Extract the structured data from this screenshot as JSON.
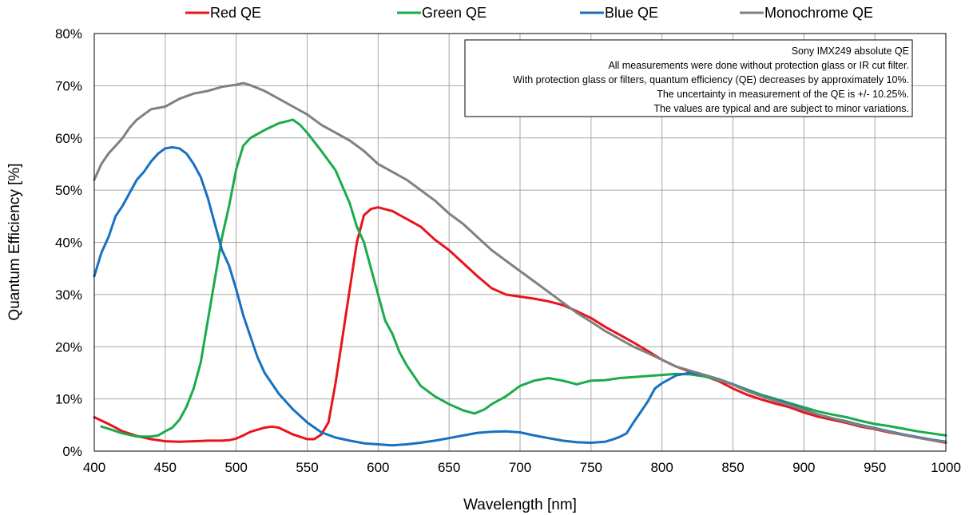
{
  "chart_data": {
    "type": "line",
    "xlabel": "Wavelength [nm]",
    "ylabel": "Quantum Efficiency [%]",
    "xlim": [
      400,
      1000
    ],
    "ylim": [
      0,
      80
    ],
    "x_ticks": [
      400,
      450,
      500,
      550,
      600,
      650,
      700,
      750,
      800,
      850,
      900,
      950,
      1000
    ],
    "y_ticks": [
      0,
      10,
      20,
      30,
      40,
      50,
      60,
      70,
      80
    ],
    "y_tick_labels": [
      "0%",
      "10%",
      "20%",
      "30%",
      "40%",
      "50%",
      "60%",
      "70%",
      "80%"
    ],
    "x_tick_labels": [
      "400",
      "450",
      "500",
      "550",
      "600",
      "650",
      "700",
      "750",
      "800",
      "850",
      "900",
      "950",
      "1000"
    ],
    "grid": true,
    "legend_position": "top",
    "annotation": {
      "lines": [
        "Sony IMX249 absolute QE",
        "All measurements were done without protection glass or IR cut filter.",
        "With protection glass or filters, quantum efficiency (QE) decreases by approximately 10%.",
        "The uncertainty in measurement of the QE is +/- 10.25%.",
        "The values are typical and are subject to minor variations."
      ]
    },
    "series": [
      {
        "name": "Red QE",
        "color": "#e8141c",
        "points": [
          [
            400,
            6.5
          ],
          [
            410,
            5.2
          ],
          [
            420,
            3.8
          ],
          [
            430,
            2.9
          ],
          [
            440,
            2.3
          ],
          [
            450,
            1.9
          ],
          [
            460,
            1.8
          ],
          [
            470,
            1.9
          ],
          [
            480,
            2.0
          ],
          [
            490,
            2.0
          ],
          [
            495,
            2.1
          ],
          [
            500,
            2.4
          ],
          [
            505,
            3.0
          ],
          [
            510,
            3.7
          ],
          [
            520,
            4.5
          ],
          [
            525,
            4.7
          ],
          [
            530,
            4.5
          ],
          [
            540,
            3.2
          ],
          [
            550,
            2.3
          ],
          [
            555,
            2.3
          ],
          [
            560,
            3.2
          ],
          [
            565,
            5.5
          ],
          [
            570,
            13.0
          ],
          [
            575,
            22.0
          ],
          [
            580,
            31.0
          ],
          [
            585,
            40.0
          ],
          [
            590,
            45.2
          ],
          [
            595,
            46.4
          ],
          [
            600,
            46.7
          ],
          [
            610,
            46.0
          ],
          [
            620,
            44.5
          ],
          [
            630,
            43.0
          ],
          [
            640,
            40.5
          ],
          [
            650,
            38.5
          ],
          [
            660,
            36.0
          ],
          [
            670,
            33.5
          ],
          [
            680,
            31.2
          ],
          [
            690,
            30.0
          ],
          [
            700,
            29.6
          ],
          [
            710,
            29.2
          ],
          [
            720,
            28.7
          ],
          [
            730,
            28.0
          ],
          [
            740,
            26.8
          ],
          [
            750,
            25.5
          ],
          [
            760,
            23.8
          ],
          [
            770,
            22.3
          ],
          [
            780,
            20.8
          ],
          [
            790,
            19.2
          ],
          [
            800,
            17.5
          ],
          [
            810,
            16.2
          ],
          [
            820,
            15.2
          ],
          [
            830,
            14.4
          ],
          [
            840,
            13.4
          ],
          [
            850,
            12.0
          ],
          [
            860,
            10.8
          ],
          [
            870,
            9.9
          ],
          [
            880,
            9.1
          ],
          [
            890,
            8.4
          ],
          [
            900,
            7.4
          ],
          [
            910,
            6.6
          ],
          [
            920,
            6.0
          ],
          [
            930,
            5.4
          ],
          [
            940,
            4.7
          ],
          [
            950,
            4.2
          ],
          [
            960,
            3.6
          ],
          [
            970,
            3.1
          ],
          [
            980,
            2.6
          ],
          [
            990,
            2.1
          ],
          [
            1000,
            1.6
          ]
        ]
      },
      {
        "name": "Green QE",
        "color": "#1aab4b",
        "points": [
          [
            405,
            4.7
          ],
          [
            410,
            4.3
          ],
          [
            420,
            3.4
          ],
          [
            430,
            2.8
          ],
          [
            440,
            2.8
          ],
          [
            445,
            3.0
          ],
          [
            450,
            3.8
          ],
          [
            455,
            4.5
          ],
          [
            460,
            6.0
          ],
          [
            465,
            8.5
          ],
          [
            470,
            12.0
          ],
          [
            475,
            17.0
          ],
          [
            480,
            25.0
          ],
          [
            485,
            33.0
          ],
          [
            490,
            41.0
          ],
          [
            495,
            47.0
          ],
          [
            500,
            54.0
          ],
          [
            505,
            58.5
          ],
          [
            510,
            60.0
          ],
          [
            520,
            61.5
          ],
          [
            530,
            62.8
          ],
          [
            540,
            63.5
          ],
          [
            545,
            62.5
          ],
          [
            550,
            61.0
          ],
          [
            560,
            57.5
          ],
          [
            570,
            53.8
          ],
          [
            580,
            47.5
          ],
          [
            585,
            43.0
          ],
          [
            590,
            40.0
          ],
          [
            595,
            35.0
          ],
          [
            600,
            30.0
          ],
          [
            605,
            25.0
          ],
          [
            610,
            22.5
          ],
          [
            615,
            19.0
          ],
          [
            620,
            16.5
          ],
          [
            630,
            12.5
          ],
          [
            640,
            10.5
          ],
          [
            650,
            9.0
          ],
          [
            660,
            7.8
          ],
          [
            668,
            7.2
          ],
          [
            675,
            8.0
          ],
          [
            680,
            9.0
          ],
          [
            690,
            10.5
          ],
          [
            700,
            12.5
          ],
          [
            710,
            13.5
          ],
          [
            720,
            14.0
          ],
          [
            730,
            13.5
          ],
          [
            740,
            12.8
          ],
          [
            750,
            13.5
          ],
          [
            760,
            13.6
          ],
          [
            770,
            14.0
          ],
          [
            780,
            14.2
          ],
          [
            790,
            14.4
          ],
          [
            800,
            14.6
          ],
          [
            810,
            14.8
          ],
          [
            820,
            14.7
          ],
          [
            830,
            14.3
          ],
          [
            840,
            13.6
          ],
          [
            850,
            12.8
          ],
          [
            860,
            11.8
          ],
          [
            870,
            10.8
          ],
          [
            880,
            10.0
          ],
          [
            890,
            9.2
          ],
          [
            900,
            8.4
          ],
          [
            910,
            7.6
          ],
          [
            920,
            7.0
          ],
          [
            930,
            6.5
          ],
          [
            940,
            5.8
          ],
          [
            950,
            5.2
          ],
          [
            960,
            4.8
          ],
          [
            970,
            4.3
          ],
          [
            980,
            3.8
          ],
          [
            990,
            3.4
          ],
          [
            1000,
            3.0
          ]
        ]
      },
      {
        "name": "Blue QE",
        "color": "#1870c0",
        "points": [
          [
            400,
            33.5
          ],
          [
            405,
            38.0
          ],
          [
            410,
            41.0
          ],
          [
            415,
            45.0
          ],
          [
            420,
            47.0
          ],
          [
            425,
            49.5
          ],
          [
            430,
            52.0
          ],
          [
            435,
            53.5
          ],
          [
            440,
            55.5
          ],
          [
            445,
            57.0
          ],
          [
            450,
            58.0
          ],
          [
            455,
            58.2
          ],
          [
            460,
            58.0
          ],
          [
            465,
            57.0
          ],
          [
            470,
            55.0
          ],
          [
            475,
            52.5
          ],
          [
            480,
            48.5
          ],
          [
            485,
            43.5
          ],
          [
            490,
            38.5
          ],
          [
            495,
            35.5
          ],
          [
            500,
            31.0
          ],
          [
            505,
            26.0
          ],
          [
            510,
            22.0
          ],
          [
            515,
            18.0
          ],
          [
            520,
            15.0
          ],
          [
            525,
            13.0
          ],
          [
            530,
            11.0
          ],
          [
            540,
            8.0
          ],
          [
            550,
            5.5
          ],
          [
            560,
            3.6
          ],
          [
            570,
            2.6
          ],
          [
            580,
            2.0
          ],
          [
            590,
            1.5
          ],
          [
            600,
            1.3
          ],
          [
            610,
            1.1
          ],
          [
            620,
            1.3
          ],
          [
            630,
            1.6
          ],
          [
            640,
            2.0
          ],
          [
            650,
            2.5
          ],
          [
            660,
            3.0
          ],
          [
            670,
            3.5
          ],
          [
            680,
            3.7
          ],
          [
            690,
            3.8
          ],
          [
            700,
            3.6
          ],
          [
            710,
            3.0
          ],
          [
            720,
            2.5
          ],
          [
            730,
            2.0
          ],
          [
            740,
            1.7
          ],
          [
            750,
            1.6
          ],
          [
            760,
            1.8
          ],
          [
            765,
            2.2
          ],
          [
            770,
            2.7
          ],
          [
            775,
            3.4
          ],
          [
            780,
            5.5
          ],
          [
            785,
            7.5
          ],
          [
            790,
            9.5
          ],
          [
            795,
            12.0
          ],
          [
            800,
            13.0
          ],
          [
            810,
            14.5
          ],
          [
            820,
            15.0
          ],
          [
            830,
            14.6
          ],
          [
            840,
            13.8
          ],
          [
            850,
            12.8
          ],
          [
            860,
            11.6
          ],
          [
            870,
            10.6
          ],
          [
            880,
            9.8
          ],
          [
            890,
            9.0
          ],
          [
            900,
            8.0
          ],
          [
            910,
            7.0
          ],
          [
            920,
            6.3
          ],
          [
            930,
            5.7
          ],
          [
            940,
            5.0
          ],
          [
            950,
            4.4
          ],
          [
            960,
            3.8
          ],
          [
            970,
            3.2
          ],
          [
            980,
            2.7
          ],
          [
            990,
            2.2
          ],
          [
            1000,
            1.8
          ]
        ]
      },
      {
        "name": "Monochrome QE",
        "color": "#808080",
        "points": [
          [
            400,
            52.0
          ],
          [
            405,
            55.0
          ],
          [
            410,
            57.0
          ],
          [
            415,
            58.5
          ],
          [
            420,
            60.0
          ],
          [
            425,
            62.0
          ],
          [
            430,
            63.5
          ],
          [
            435,
            64.5
          ],
          [
            440,
            65.5
          ],
          [
            450,
            66.0
          ],
          [
            460,
            67.5
          ],
          [
            470,
            68.5
          ],
          [
            480,
            69.0
          ],
          [
            490,
            69.8
          ],
          [
            500,
            70.2
          ],
          [
            505,
            70.5
          ],
          [
            510,
            70.1
          ],
          [
            520,
            69.0
          ],
          [
            530,
            67.5
          ],
          [
            540,
            66.0
          ],
          [
            550,
            64.5
          ],
          [
            560,
            62.5
          ],
          [
            570,
            61.0
          ],
          [
            580,
            59.5
          ],
          [
            590,
            57.5
          ],
          [
            600,
            55.0
          ],
          [
            610,
            53.5
          ],
          [
            620,
            52.0
          ],
          [
            630,
            50.0
          ],
          [
            640,
            48.0
          ],
          [
            650,
            45.5
          ],
          [
            660,
            43.5
          ],
          [
            670,
            41.0
          ],
          [
            680,
            38.5
          ],
          [
            690,
            36.5
          ],
          [
            700,
            34.5
          ],
          [
            710,
            32.5
          ],
          [
            720,
            30.5
          ],
          [
            730,
            28.5
          ],
          [
            740,
            26.5
          ],
          [
            750,
            24.8
          ],
          [
            760,
            23.0
          ],
          [
            770,
            21.5
          ],
          [
            780,
            20.0
          ],
          [
            790,
            18.8
          ],
          [
            800,
            17.5
          ],
          [
            810,
            16.2
          ],
          [
            820,
            15.4
          ],
          [
            830,
            14.6
          ],
          [
            840,
            13.7
          ],
          [
            850,
            12.7
          ],
          [
            860,
            11.5
          ],
          [
            870,
            10.5
          ],
          [
            880,
            9.6
          ],
          [
            890,
            8.8
          ],
          [
            900,
            7.9
          ],
          [
            910,
            7.0
          ],
          [
            920,
            6.3
          ],
          [
            930,
            5.6
          ],
          [
            940,
            4.9
          ],
          [
            950,
            4.3
          ],
          [
            960,
            3.7
          ],
          [
            970,
            3.1
          ],
          [
            980,
            2.6
          ],
          [
            990,
            2.1
          ],
          [
            1000,
            1.7
          ]
        ]
      }
    ]
  }
}
